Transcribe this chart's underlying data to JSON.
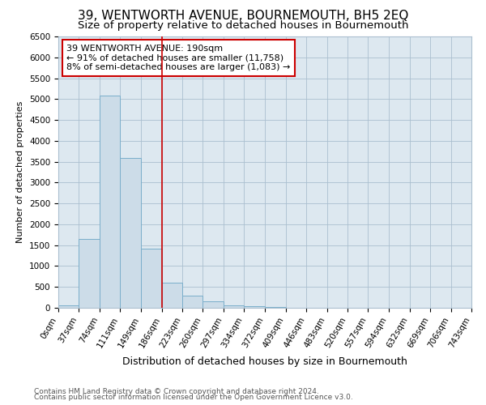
{
  "title": "39, WENTWORTH AVENUE, BOURNEMOUTH, BH5 2EQ",
  "subtitle": "Size of property relative to detached houses in Bournemouth",
  "xlabel": "Distribution of detached houses by size in Bournemouth",
  "ylabel": "Number of detached properties",
  "bin_edges": [
    0,
    37,
    74,
    111,
    149,
    186,
    223,
    260,
    297,
    334,
    372,
    409,
    446,
    483,
    520,
    557,
    594,
    632,
    669,
    706,
    743
  ],
  "bar_heights": [
    60,
    1650,
    5080,
    3580,
    1420,
    600,
    300,
    150,
    50,
    30,
    10,
    5,
    2,
    0,
    0,
    0,
    0,
    0,
    0,
    0
  ],
  "bar_color": "#ccdce8",
  "bar_edge_color": "#7aaecb",
  "property_line_x": 186,
  "property_line_color": "#cc0000",
  "annotation_line1": "39 WENTWORTH AVENUE: 190sqm",
  "annotation_line2": "← 91% of detached houses are smaller (11,758)",
  "annotation_line3": "8% of semi-detached houses are larger (1,083) →",
  "annotation_box_color": "#cc0000",
  "annotation_box_fill": "#ffffff",
  "ylim": [
    0,
    6500
  ],
  "ytick_step": 500,
  "footnote1": "Contains HM Land Registry data © Crown copyright and database right 2024.",
  "footnote2": "Contains public sector information licensed under the Open Government Licence v3.0.",
  "fig_background": "#ffffff",
  "plot_background": "#dde8f0",
  "title_fontsize": 11,
  "subtitle_fontsize": 9.5,
  "tick_label_fontsize": 7.5,
  "ylabel_fontsize": 8,
  "xlabel_fontsize": 9,
  "annotation_fontsize": 8,
  "footnote_fontsize": 6.5
}
